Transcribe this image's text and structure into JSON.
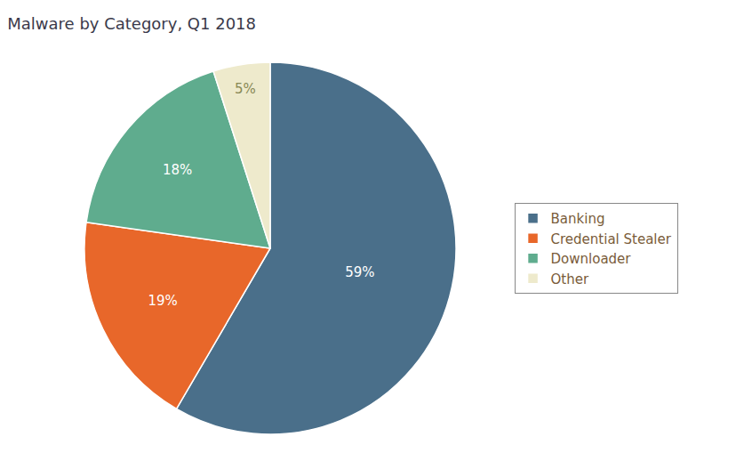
{
  "chart_data": {
    "type": "pie",
    "title": "Malware by Category, Q1 2018",
    "categories": [
      "Banking",
      "Credential Stealer",
      "Downloader",
      "Other"
    ],
    "values": [
      59,
      19,
      18,
      5
    ],
    "value_labels": [
      "59%",
      "19%",
      "18%",
      "5%"
    ],
    "colors": [
      "#4a6f8a",
      "#e8672a",
      "#5fac8e",
      "#eeeacc"
    ],
    "data_labels": true,
    "legend": "right"
  }
}
